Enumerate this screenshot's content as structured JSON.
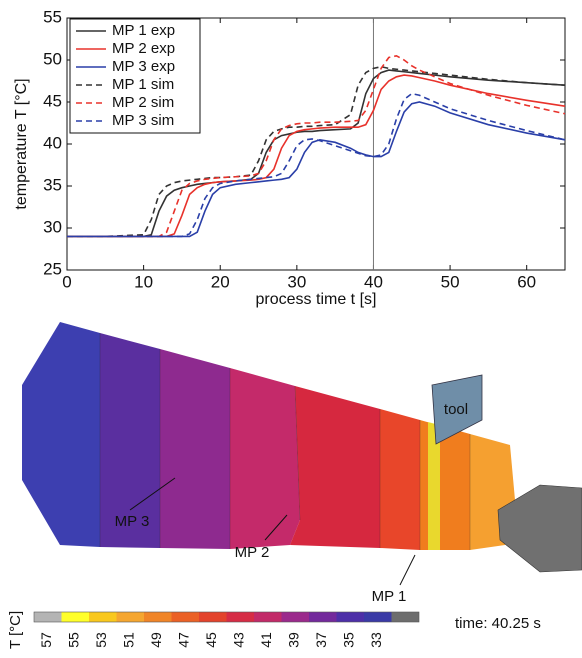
{
  "chart_data": {
    "type": "line",
    "xlabel": "process time t [s]",
    "ylabel": "temperature T [°C]",
    "x": [
      0,
      5,
      10,
      11,
      12,
      13,
      14,
      15,
      16,
      17,
      18,
      19,
      20,
      22,
      24,
      25,
      26,
      27,
      28,
      29,
      30,
      31,
      32,
      33,
      35,
      37,
      38,
      39,
      40,
      41,
      42,
      43,
      44,
      45,
      46,
      48,
      50,
      55,
      60,
      65
    ],
    "series": [
      {
        "name": "MP 1 exp",
        "color": "#333333",
        "linestyle": "solid",
        "values": [
          29,
          29,
          29,
          29.2,
          32,
          33.8,
          34.5,
          34.8,
          35,
          35.2,
          35.3,
          35.4,
          35.5,
          35.6,
          35.8,
          36.5,
          39,
          40.5,
          41,
          41.2,
          41.4,
          41.5,
          41.5,
          41.6,
          41.7,
          41.8,
          42.5,
          46,
          47.8,
          48.5,
          48.8,
          48.7,
          48.6,
          48.5,
          48.4,
          48.2,
          48,
          47.6,
          47.3,
          47
        ]
      },
      {
        "name": "MP 2 exp",
        "color": "#e8322b",
        "linestyle": "solid",
        "values": [
          29,
          29,
          29,
          29,
          29,
          29,
          29.3,
          31.5,
          34,
          34.8,
          35.2,
          35.4,
          35.5,
          35.6,
          35.7,
          35.8,
          36,
          37,
          39.5,
          41,
          41.5,
          41.7,
          41.8,
          41.9,
          42,
          42,
          42,
          42.3,
          44,
          46.5,
          47.5,
          48,
          48.2,
          48.1,
          47.9,
          47.5,
          47,
          46,
          45.2,
          44.5
        ]
      },
      {
        "name": "MP 3 exp",
        "color": "#2a3fa8",
        "linestyle": "solid",
        "values": [
          29,
          29,
          29,
          29,
          29,
          29,
          29,
          29,
          29,
          29.5,
          32,
          34,
          34.8,
          35.2,
          35.4,
          35.5,
          35.6,
          35.7,
          35.8,
          36,
          37,
          39,
          40.2,
          40.5,
          40.2,
          39.5,
          39,
          38.7,
          38.5,
          38.5,
          39,
          41.5,
          43.8,
          44.8,
          45,
          44.5,
          43.7,
          42.3,
          41.3,
          40.5
        ]
      },
      {
        "name": "MP 1 sim",
        "color": "#333333",
        "linestyle": "dashed",
        "values": [
          29,
          29,
          29.2,
          31,
          34,
          35,
          35.4,
          35.6,
          35.7,
          35.8,
          35.9,
          36,
          36,
          36.1,
          36.3,
          38,
          40.5,
          41.5,
          41.8,
          42,
          42,
          42.1,
          42.1,
          42.2,
          42.3,
          43.5,
          47,
          48.5,
          49,
          49.2,
          49,
          48.9,
          48.8,
          48.7,
          48.6,
          48.4,
          48.2,
          47.7,
          47.3,
          47
        ]
      },
      {
        "name": "MP 2 sim",
        "color": "#e8322b",
        "linestyle": "dashed",
        "values": [
          29,
          29,
          29,
          29,
          29,
          29.5,
          32,
          34.5,
          35.3,
          35.6,
          35.8,
          35.9,
          36,
          36.1,
          36.2,
          36.5,
          38,
          40.5,
          41.8,
          42.2,
          42.4,
          42.5,
          42.5,
          42.6,
          42.6,
          42.7,
          42.8,
          44,
          46.5,
          49,
          50.3,
          50.5,
          50,
          49.3,
          48.8,
          48,
          47.2,
          45.8,
          44.6,
          43.6
        ]
      },
      {
        "name": "MP 3 sim",
        "color": "#2a3fa8",
        "linestyle": "dashed",
        "values": [
          29,
          29,
          29,
          29,
          29,
          29,
          29,
          29,
          29.3,
          31,
          33.5,
          34.8,
          35.3,
          35.6,
          35.8,
          35.9,
          36,
          36.1,
          36.5,
          38,
          39.8,
          40.5,
          40.6,
          40.4,
          39.8,
          39.2,
          38.9,
          38.6,
          38.5,
          38.7,
          40,
          43,
          45.3,
          46,
          45.8,
          45,
          44.2,
          42.8,
          41.6,
          40.5
        ]
      }
    ],
    "xlim": [
      0,
      65
    ],
    "xticks": [
      0,
      10,
      20,
      30,
      40,
      50,
      60
    ],
    "ylim": [
      25,
      55
    ],
    "yticks": [
      25,
      30,
      35,
      40,
      45,
      50,
      55
    ],
    "vline": 40,
    "grid": false,
    "legend": "upper left"
  },
  "render": {
    "labels": {
      "mp1": "MP 1",
      "mp2": "MP 2",
      "mp3": "MP 3",
      "tool": "tool"
    },
    "colorbar": {
      "title": "T [°C]",
      "ticks": [
        57,
        55,
        53,
        51,
        49,
        47,
        45,
        43,
        41,
        39,
        37,
        35,
        33
      ],
      "colors": [
        "#b4b4b4",
        "#ffff2a",
        "#f9c81e",
        "#f5a630",
        "#f08528",
        "#eb6126",
        "#e3432c",
        "#d62c45",
        "#c22a68",
        "#9b2a8c",
        "#73299c",
        "#4d2fa8",
        "#3a3aa6",
        "#6d6d6d"
      ]
    },
    "time": "time:  40.25 s"
  }
}
